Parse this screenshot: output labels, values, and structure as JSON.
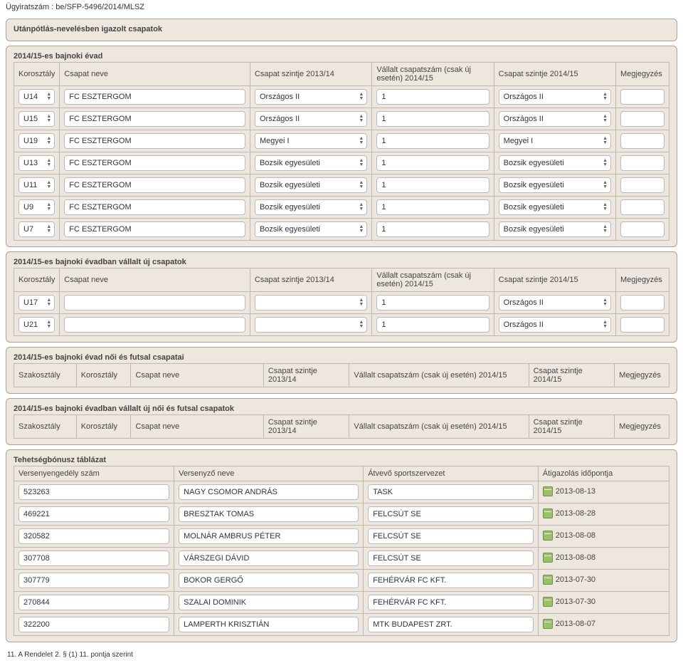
{
  "caseNumber": "Ügyiratszám : be/SFP-5496/2014/MLSZ",
  "panel1": {
    "title": "Utánpótlás-nevelésben igazolt csapatok"
  },
  "season1": {
    "title": "2014/15-es bajnoki évad",
    "headers": {
      "korosztaly": "Korosztály",
      "csapat": "Csapat neve",
      "szintje13": "Csapat szintje 2013/14",
      "vallalt": "Vállalt csapatszám (csak új esetén) 2014/15",
      "szintje15": "Csapat szintje 2014/15",
      "megj": "Megjegyzés"
    },
    "rows": [
      {
        "kor": "U14",
        "team": "FC ESZTERGOM",
        "lvl13": "Országos II",
        "vall": "1",
        "lvl15": "Országos II",
        "meg": ""
      },
      {
        "kor": "U15",
        "team": "FC ESZTERGOM",
        "lvl13": "Országos II",
        "vall": "1",
        "lvl15": "Országos II",
        "meg": ""
      },
      {
        "kor": "U19",
        "team": "FC ESZTERGOM",
        "lvl13": "Megyei I",
        "vall": "1",
        "lvl15": "Megyei I",
        "meg": ""
      },
      {
        "kor": "U13",
        "team": "FC ESZTERGOM",
        "lvl13": "Bozsik egyesületi",
        "vall": "1",
        "lvl15": "Bozsik egyesületi",
        "meg": ""
      },
      {
        "kor": "U11",
        "team": "FC ESZTERGOM",
        "lvl13": "Bozsik egyesületi",
        "vall": "1",
        "lvl15": "Bozsik egyesületi",
        "meg": ""
      },
      {
        "kor": "U9",
        "team": "FC ESZTERGOM",
        "lvl13": "Bozsik egyesületi",
        "vall": "1",
        "lvl15": "Bozsik egyesületi",
        "meg": ""
      },
      {
        "kor": "U7",
        "team": "FC ESZTERGOM",
        "lvl13": "Bozsik egyesületi",
        "vall": "1",
        "lvl15": "Bozsik egyesületi",
        "meg": ""
      }
    ]
  },
  "season2": {
    "title": "2014/15-es bajnoki évadban vállalt új csapatok",
    "headers": {
      "korosztaly": "Korosztály",
      "csapat": "Csapat neve",
      "szintje13": "Csapat szintje 2013/14",
      "vallalt": "Vállalt csapatszám (csak új esetén) 2014/15",
      "szintje15": "Csapat szintje 2014/15",
      "megj": "Megjegyzés"
    },
    "rows": [
      {
        "kor": "U17",
        "team": "",
        "lvl13": "",
        "vall": "1",
        "lvl15": "Országos II",
        "meg": ""
      },
      {
        "kor": "U21",
        "team": "",
        "lvl13": "",
        "vall": "1",
        "lvl15": "Országos II",
        "meg": ""
      }
    ]
  },
  "season3": {
    "title": "2014/15-es bajnoki évad női és futsal csapatai",
    "headers": {
      "szak": "Szakosztály",
      "korosztaly": "Korosztály",
      "csapat": "Csapat neve",
      "szintje13": "Csapat szintje 2013/14",
      "vallalt": "Vállalt csapatszám (csak új esetén) 2014/15",
      "szintje15": "Csapat szintje 2014/15",
      "megj": "Megjegyzés"
    }
  },
  "season4": {
    "title": "2014/15-es bajnoki évadban vállalt új női és futsal csapatok",
    "headers": {
      "szak": "Szakosztály",
      "korosztaly": "Korosztály",
      "csapat": "Csapat neve",
      "szintje13": "Csapat szintje 2013/14",
      "vallalt": "Vállalt csapatszám (csak új esetén) 2014/15",
      "szintje15": "Csapat szintje 2014/15",
      "megj": "Megjegyzés"
    }
  },
  "bonus": {
    "title": "Tehetségbónusz táblázat",
    "headers": {
      "verseny": "Versenyengedély szám",
      "nev": "Versenyző neve",
      "atvevo": "Átvevő sportszervezet",
      "datum": "Átigazolás időpontja"
    },
    "rows": [
      {
        "id": "523263",
        "name": "NAGY CSOMOR ANDRÁS",
        "org": "TASK",
        "date": "2013-08-13"
      },
      {
        "id": "469221",
        "name": "BRESZTAK TOMAS",
        "org": "FELCSÚT SE",
        "date": "2013-08-28"
      },
      {
        "id": "320582",
        "name": "MOLNÁR AMBRUS PÉTER",
        "org": "FELCSÚT SE",
        "date": "2013-08-08"
      },
      {
        "id": "307708",
        "name": "VÁRSZEGI DÁVID",
        "org": "FELCSÚT SE",
        "date": "2013-08-08"
      },
      {
        "id": "307779",
        "name": "BOKOR GERGŐ",
        "org": "FEHÉRVÁR FC KFT.",
        "date": "2013-07-30"
      },
      {
        "id": "270844",
        "name": "SZALAI DOMINIK",
        "org": "FEHÉRVÁR FC KFT.",
        "date": "2013-07-30"
      },
      {
        "id": "322200",
        "name": "LAMPERTH KRISZTIÁN",
        "org": "MTK BUDAPEST ZRT.",
        "date": "2013-08-07"
      }
    ]
  },
  "footnote": "11. A Rendelet 2. § (1) 11. pontja szerint",
  "style": {
    "panelBg": "#eee7e0",
    "panelBorder": "#b0a090",
    "cellBorder": "#c0b8ae",
    "inputBorder": "#bbbbbb",
    "textColor": "#444444",
    "fontSize": 11
  }
}
